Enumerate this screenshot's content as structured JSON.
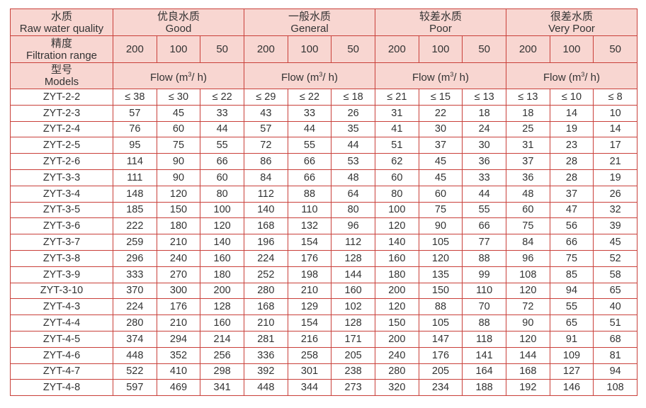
{
  "header": {
    "label": {
      "zh": "水质",
      "en": "Raw water quality"
    },
    "groups": [
      {
        "zh": "优良水质",
        "en": "Good"
      },
      {
        "zh": "一般水质",
        "en": "General"
      },
      {
        "zh": "较差水质",
        "en": "Poor"
      },
      {
        "zh": "很差水质",
        "en": "Very Poor"
      }
    ]
  },
  "range_row": {
    "zh": "精度",
    "en": "Filtration range",
    "values": [
      [
        200,
        100,
        50
      ],
      [
        200,
        100,
        50
      ],
      [
        200,
        100,
        50
      ],
      [
        200,
        100,
        50
      ]
    ]
  },
  "models_row": {
    "zh": "型号",
    "en": "Models",
    "flow": [
      {
        "prefix": "Flow (m",
        "sup": "3",
        "suffix": "/ h)"
      },
      {
        "prefix": "Flow (m",
        "sup": "3",
        "suffix": "/ h)"
      },
      {
        "prefix": "Flow (m",
        "sup": "3",
        "suffix": "/ h)"
      },
      {
        "prefix": "Flow (m",
        "sup": "3",
        "suffix": "/ h)"
      }
    ]
  },
  "table": {
    "rows": [
      [
        "ZYT-2-2",
        "≤ 38",
        "≤ 30",
        "≤ 22",
        "≤ 29",
        "≤ 22",
        "≤ 18",
        "≤ 21",
        "≤ 15",
        "≤ 13",
        "≤ 13",
        "≤ 10",
        "≤ 8"
      ],
      [
        "ZYT-2-3",
        57,
        45,
        33,
        43,
        33,
        26,
        31,
        22,
        18,
        18,
        14,
        10
      ],
      [
        "ZYT-2-4",
        76,
        60,
        44,
        57,
        44,
        35,
        41,
        30,
        24,
        25,
        19,
        14
      ],
      [
        "ZYT-2-5",
        95,
        75,
        55,
        72,
        55,
        44,
        51,
        37,
        30,
        31,
        23,
        17
      ],
      [
        "ZYT-2-6",
        114,
        90,
        66,
        86,
        66,
        53,
        62,
        45,
        36,
        37,
        28,
        21
      ],
      [
        "ZYT-3-3",
        111,
        90,
        60,
        84,
        66,
        48,
        60,
        45,
        33,
        36,
        28,
        19
      ],
      [
        "ZYT-3-4",
        148,
        120,
        80,
        112,
        88,
        64,
        80,
        60,
        44,
        48,
        37,
        26
      ],
      [
        "ZYT-3-5",
        185,
        150,
        100,
        140,
        110,
        80,
        100,
        75,
        55,
        60,
        47,
        32
      ],
      [
        "ZYT-3-6",
        222,
        180,
        120,
        168,
        132,
        96,
        120,
        90,
        66,
        75,
        56,
        39
      ],
      [
        "ZYT-3-7",
        259,
        210,
        140,
        196,
        154,
        112,
        140,
        105,
        77,
        84,
        66,
        45
      ],
      [
        "ZYT-3-8",
        296,
        240,
        160,
        224,
        176,
        128,
        160,
        120,
        88,
        96,
        75,
        52
      ],
      [
        "ZYT-3-9",
        333,
        270,
        180,
        252,
        198,
        144,
        180,
        135,
        99,
        108,
        85,
        58
      ],
      [
        "ZYT-3-10",
        370,
        300,
        200,
        280,
        210,
        160,
        200,
        150,
        110,
        120,
        94,
        65
      ],
      [
        "ZYT-4-3",
        224,
        176,
        128,
        168,
        129,
        102,
        120,
        88,
        70,
        72,
        55,
        40
      ],
      [
        "ZYT-4-4",
        280,
        210,
        160,
        210,
        154,
        128,
        150,
        105,
        88,
        90,
        65,
        51
      ],
      [
        "ZYT-4-5",
        374,
        294,
        214,
        281,
        216,
        171,
        200,
        147,
        118,
        120,
        91,
        68
      ],
      [
        "ZYT-4-6",
        448,
        352,
        256,
        336,
        258,
        205,
        240,
        176,
        141,
        144,
        109,
        81
      ],
      [
        "ZYT-4-7",
        522,
        410,
        298,
        392,
        301,
        238,
        280,
        205,
        164,
        168,
        127,
        94
      ],
      [
        "ZYT-4-8",
        597,
        469,
        341,
        448,
        344,
        273,
        320,
        234,
        188,
        192,
        146,
        108
      ]
    ]
  }
}
